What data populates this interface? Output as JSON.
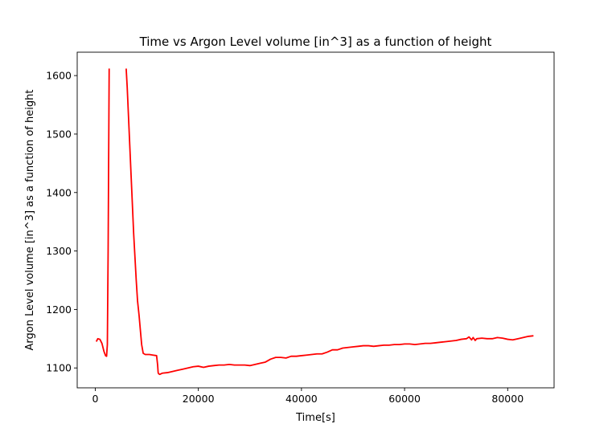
{
  "chart_data": {
    "type": "line",
    "title": "Time vs  Argon Level volume [in^3] as a function of height",
    "xlabel": "Time[s]",
    "ylabel": "Argon Level volume [in^3] as a function of height",
    "xlim": [
      -3500,
      89000
    ],
    "ylim": [
      1066,
      1640
    ],
    "xticks": [
      0,
      20000,
      40000,
      60000,
      80000
    ],
    "xtick_labels": [
      "0",
      "20000",
      "40000",
      "60000",
      "80000"
    ],
    "yticks": [
      1100,
      1200,
      1300,
      1400,
      1500,
      1600
    ],
    "ytick_labels": [
      "1100",
      "1200",
      "1300",
      "1400",
      "1500",
      "1600"
    ],
    "grid": false,
    "series": [
      {
        "color": "#ff0000",
        "segments": [
          {
            "x": [
              200,
              500,
              900,
              1300,
              1700,
              2000,
              2200,
              2350,
              2500,
              2700
            ],
            "y": [
              1145,
              1150,
              1149,
              1142,
              1128,
              1121,
              1120,
              1140,
              1300,
              1612
            ]
          },
          {
            "x": [
              6000,
              6200,
              6450,
              6700,
              6950,
              7200,
              7450,
              7700,
              7950,
              8200,
              8500,
              8800,
              9000,
              9300,
              9700,
              10500,
              11200,
              11900,
              12100,
              12200,
              12300,
              12500,
              13000,
              14000,
              15000,
              16000,
              17000,
              18000,
              19000,
              20000,
              21000,
              22000,
              23000,
              24000,
              25000,
              26000,
              27000,
              28000,
              29000,
              30000,
              31000,
              32000,
              33000,
              34000,
              35000,
              36000,
              37000,
              38000,
              39000,
              40000,
              41000,
              42000,
              43000,
              44000,
              45000,
              46000,
              47000,
              48000,
              49000,
              50000,
              51000,
              52000,
              53000,
              54000,
              55000,
              56000,
              57000,
              58000,
              59000,
              60000,
              61000,
              62000,
              63000,
              64000,
              65000,
              66000,
              67000,
              68000,
              69000,
              70000,
              71000,
              72000,
              72500,
              73000,
              73300,
              73700,
              74000,
              75000,
              76000,
              77000,
              78000,
              79000,
              80000,
              81000,
              82000,
              83000,
              84000,
              85000
            ],
            "y": [
              1612,
              1580,
              1530,
              1480,
              1430,
              1380,
              1330,
              1290,
              1250,
              1215,
              1190,
              1160,
              1140,
              1125,
              1123,
              1123,
              1122,
              1121,
              1105,
              1092,
              1090,
              1089,
              1091,
              1092,
              1094,
              1096,
              1098,
              1100,
              1102,
              1103,
              1101,
              1103,
              1104,
              1105,
              1105,
              1106,
              1105,
              1105,
              1105,
              1104,
              1106,
              1108,
              1110,
              1115,
              1118,
              1118,
              1117,
              1120,
              1120,
              1121,
              1122,
              1123,
              1124,
              1124,
              1127,
              1131,
              1131,
              1134,
              1135,
              1136,
              1137,
              1138,
              1138,
              1137,
              1138,
              1139,
              1139,
              1140,
              1140,
              1141,
              1141,
              1140,
              1141,
              1142,
              1142,
              1143,
              1144,
              1145,
              1146,
              1147,
              1149,
              1150,
              1153,
              1148,
              1152,
              1147,
              1150,
              1151,
              1150,
              1150,
              1152,
              1151,
              1149,
              1148,
              1150,
              1152,
              1154,
              1155
            ]
          }
        ]
      }
    ]
  }
}
